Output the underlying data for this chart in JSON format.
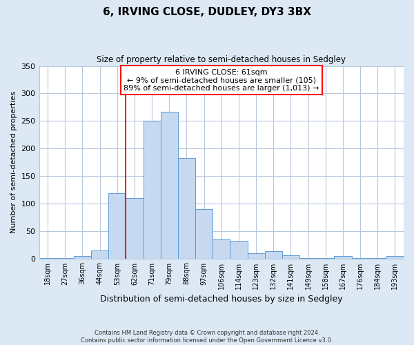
{
  "title": "6, IRVING CLOSE, DUDLEY, DY3 3BX",
  "subtitle": "Size of property relative to semi-detached houses in Sedgley",
  "xlabel": "Distribution of semi-detached houses by size in Sedgley",
  "ylabel": "Number of semi-detached properties",
  "footer_line1": "Contains HM Land Registry data © Crown copyright and database right 2024.",
  "footer_line2": "Contains public sector information licensed under the Open Government Licence v3.0.",
  "bin_labels": [
    "18sqm",
    "27sqm",
    "36sqm",
    "44sqm",
    "53sqm",
    "62sqm",
    "71sqm",
    "79sqm",
    "88sqm",
    "97sqm",
    "106sqm",
    "114sqm",
    "123sqm",
    "132sqm",
    "141sqm",
    "149sqm",
    "158sqm",
    "167sqm",
    "176sqm",
    "184sqm",
    "193sqm"
  ],
  "bar_heights": [
    1,
    1,
    5,
    15,
    118,
    110,
    250,
    267,
    183,
    90,
    35,
    32,
    10,
    13,
    6,
    1,
    1,
    5,
    1,
    1,
    4
  ],
  "bar_color": "#c6d9f0",
  "bar_edge_color": "#5b9bd5",
  "marker_bin_index": 5,
  "marker_color": "red",
  "ylim": [
    0,
    350
  ],
  "yticks": [
    0,
    50,
    100,
    150,
    200,
    250,
    300,
    350
  ],
  "annotation_title": "6 IRVING CLOSE: 61sqm",
  "annotation_line1": "← 9% of semi-detached houses are smaller (105)",
  "annotation_line2": "89% of semi-detached houses are larger (1,013) →",
  "annotation_box_color": "white",
  "annotation_box_edge_color": "red",
  "bg_color": "#dce9f5",
  "plot_bg_color": "white",
  "grid_color": "#b8c8dc"
}
